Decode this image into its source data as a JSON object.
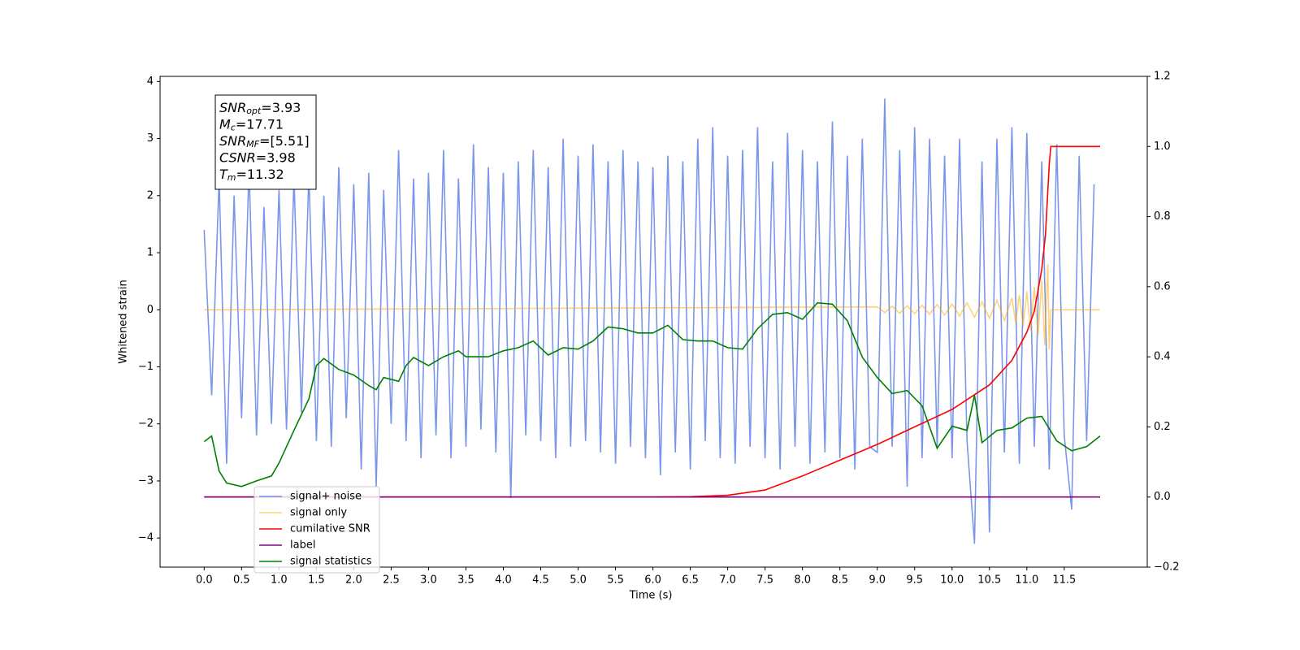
{
  "chart_data": {
    "type": "line",
    "xlabel": "Time (s)",
    "ylabel": "Whitened strain",
    "xlim": [
      -0.59,
      12.61
    ],
    "ylim": [
      -4.51,
      4.09
    ],
    "y2lim": [
      -0.2,
      1.2
    ],
    "xticks": [
      {
        "value": 0,
        "label": "0.0"
      },
      {
        "value": 0.5,
        "label": "0.5"
      },
      {
        "value": 1,
        "label": "1.0"
      },
      {
        "value": 1.5,
        "label": "1.5"
      },
      {
        "value": 2,
        "label": "2.0"
      },
      {
        "value": 2.5,
        "label": "2.5"
      },
      {
        "value": 3,
        "label": "3.0"
      },
      {
        "value": 3.5,
        "label": "3.5"
      },
      {
        "value": 4,
        "label": "4.0"
      },
      {
        "value": 4.5,
        "label": "4.5"
      },
      {
        "value": 5,
        "label": "5.0"
      },
      {
        "value": 5.5,
        "label": "5.5"
      },
      {
        "value": 6,
        "label": "6.0"
      },
      {
        "value": 6.5,
        "label": "6.5"
      },
      {
        "value": 7,
        "label": "7.0"
      },
      {
        "value": 7.5,
        "label": "7.5"
      },
      {
        "value": 8,
        "label": "8.0"
      },
      {
        "value": 8.5,
        "label": "8.5"
      },
      {
        "value": 9,
        "label": "9.0"
      },
      {
        "value": 9.5,
        "label": "9.5"
      },
      {
        "value": 10,
        "label": "10.0"
      },
      {
        "value": 10.5,
        "label": "10.5"
      },
      {
        "value": 11,
        "label": "11.0"
      },
      {
        "value": 11.5,
        "label": "11.5"
      }
    ],
    "yticks": [
      {
        "value": -4,
        "label": "−4"
      },
      {
        "value": -3,
        "label": "−3"
      },
      {
        "value": -2,
        "label": "−2"
      },
      {
        "value": -1,
        "label": "−1"
      },
      0,
      1,
      2,
      3,
      4
    ],
    "y2ticks": [
      {
        "value": -0.2,
        "label": "−0.2"
      },
      {
        "value": 0,
        "label": "0.0"
      },
      {
        "value": 0.2,
        "label": "0.2"
      },
      {
        "value": 0.4,
        "label": "0.4"
      },
      {
        "value": 0.6,
        "label": "0.6"
      },
      {
        "value": 0.8,
        "label": "0.8"
      },
      {
        "value": 1,
        "label": "1.0"
      },
      {
        "value": 1.2,
        "label": "1.2"
      }
    ],
    "annotation": [
      {
        "symbol": "SNR",
        "sub": "opt",
        "text": "=3.93"
      },
      {
        "symbol": "M",
        "sub": "c",
        "text": "=17.71"
      },
      {
        "symbol": "SNR",
        "sub": "MF",
        "text": "=[5.51]"
      },
      {
        "symbol": "CSNR",
        "text": "=3.98"
      },
      {
        "symbol": "T",
        "sub": "m",
        "text": "=11.32"
      }
    ],
    "series": [
      {
        "name": "signal+ noise",
        "color": "#4169e1",
        "alpha": 0.7,
        "x": [
          0,
          0.1,
          0.2,
          0.3,
          0.4,
          0.5,
          0.6,
          0.7,
          0.8,
          0.9,
          1,
          1.1,
          1.2,
          1.3,
          1.4,
          1.5,
          1.6,
          1.7,
          1.8,
          1.9,
          2,
          2.1,
          2.2,
          2.3,
          2.4,
          2.5,
          2.6,
          2.7,
          2.8,
          2.9,
          3,
          3.1,
          3.2,
          3.3,
          3.4,
          3.5,
          3.6,
          3.7,
          3.8,
          3.9,
          4,
          4.1,
          4.2,
          4.3,
          4.4,
          4.5,
          4.6,
          4.7,
          4.8,
          4.9,
          5,
          5.1,
          5.2,
          5.3,
          5.4,
          5.5,
          5.6,
          5.7,
          5.8,
          5.9,
          6,
          6.1,
          6.2,
          6.3,
          6.4,
          6.5,
          6.6,
          6.7,
          6.8,
          6.9,
          7,
          7.1,
          7.2,
          7.3,
          7.4,
          7.5,
          7.6,
          7.7,
          7.8,
          7.9,
          8,
          8.1,
          8.2,
          8.3,
          8.4,
          8.5,
          8.6,
          8.7,
          8.8,
          8.9,
          9,
          9.1,
          9.2,
          9.3,
          9.4,
          9.5,
          9.6,
          9.7,
          9.8,
          9.9,
          10,
          10.1,
          10.2,
          10.3,
          10.4,
          10.5,
          10.6,
          10.7,
          10.8,
          10.9,
          11,
          11.1,
          11.2,
          11.3,
          11.4,
          11.5,
          11.6,
          11.7,
          11.8,
          11.9
        ],
        "values": [
          1.4,
          -1.5,
          2.3,
          -2.7,
          2.0,
          -1.9,
          2.5,
          -2.2,
          1.8,
          -2.0,
          2.1,
          -2.1,
          2.3,
          -1.8,
          2.4,
          -2.3,
          2.0,
          -2.4,
          2.5,
          -1.9,
          2.2,
          -2.8,
          2.4,
          -3.1,
          2.1,
          -2.0,
          2.8,
          -2.3,
          2.3,
          -2.6,
          2.4,
          -2.2,
          2.8,
          -2.6,
          2.3,
          -2.4,
          2.9,
          -2.1,
          2.5,
          -2.5,
          2.4,
          -3.3,
          2.6,
          -2.2,
          2.8,
          -2.3,
          2.5,
          -2.6,
          3.0,
          -2.4,
          2.7,
          -2.3,
          2.9,
          -2.5,
          2.6,
          -2.7,
          2.8,
          -2.4,
          2.6,
          -2.6,
          2.5,
          -2.9,
          2.7,
          -2.5,
          2.6,
          -2.8,
          3.0,
          -2.3,
          3.2,
          -2.6,
          2.7,
          -2.7,
          2.8,
          -2.4,
          3.2,
          -2.6,
          2.6,
          -2.8,
          3.1,
          -2.4,
          2.8,
          -2.7,
          2.6,
          -2.5,
          3.3,
          -2.6,
          2.7,
          -2.8,
          3.0,
          -2.4,
          -2.5,
          3.7,
          -2.4,
          2.8,
          -3.1,
          3.2,
          -2.6,
          3.0,
          -2.4,
          2.7,
          -2.6,
          3.0,
          -2.3,
          -4.1,
          2.6,
          -3.9,
          3.0,
          -2.5,
          3.2,
          -2.7,
          3.1,
          -2.4,
          2.6,
          -2.8,
          2.9,
          -2.2,
          -3.5,
          2.7,
          -2.3,
          2.2
        ]
      },
      {
        "name": "signal only",
        "color": "#ffa500",
        "alpha": 0.5,
        "x": [
          0,
          9.0,
          9.1,
          9.2,
          9.3,
          9.4,
          9.5,
          9.6,
          9.7,
          9.8,
          9.9,
          10.0,
          10.1,
          10.2,
          10.3,
          10.4,
          10.5,
          10.6,
          10.7,
          10.8,
          10.85,
          10.9,
          10.95,
          11.0,
          11.05,
          11.1,
          11.15,
          11.2,
          11.24,
          11.28,
          11.3,
          11.32,
          11.98
        ],
        "values": [
          0,
          0.05,
          -0.05,
          0.06,
          -0.06,
          0.07,
          -0.07,
          0.08,
          -0.08,
          0.09,
          -0.09,
          0.1,
          -0.11,
          0.12,
          -0.13,
          0.14,
          -0.15,
          0.17,
          -0.19,
          0.21,
          -0.23,
          0.26,
          -0.29,
          0.32,
          -0.36,
          0.4,
          -0.45,
          0.52,
          -0.62,
          0.8,
          -0.7,
          0,
          0
        ]
      },
      {
        "name": "cumilative SNR",
        "color": "#ff0000",
        "axis": "y2",
        "x": [
          0,
          6.0,
          6.5,
          7.0,
          7.5,
          8.0,
          8.5,
          9.0,
          9.5,
          10.0,
          10.5,
          10.8,
          11.0,
          11.1,
          11.2,
          11.25,
          11.3,
          11.32,
          11.98
        ],
        "values": [
          0,
          0,
          0.001,
          0.005,
          0.02,
          0.06,
          0.105,
          0.15,
          0.2,
          0.25,
          0.32,
          0.39,
          0.47,
          0.53,
          0.65,
          0.75,
          0.95,
          1.0,
          1.0
        ]
      },
      {
        "name": "label",
        "color": "#800080",
        "axis": "y2",
        "x": [
          0,
          11.98
        ],
        "values": [
          0,
          0
        ]
      },
      {
        "name": "signal statistics",
        "color": "#008000",
        "axis": "y2",
        "x": [
          0,
          0.1,
          0.2,
          0.3,
          0.5,
          0.7,
          0.9,
          1.0,
          1.2,
          1.4,
          1.5,
          1.6,
          1.8,
          2.0,
          2.2,
          2.3,
          2.4,
          2.6,
          2.7,
          2.8,
          3.0,
          3.2,
          3.4,
          3.5,
          3.8,
          4.0,
          4.2,
          4.4,
          4.6,
          4.8,
          5.0,
          5.2,
          5.4,
          5.6,
          5.8,
          6.0,
          6.2,
          6.4,
          6.6,
          6.8,
          7.0,
          7.2,
          7.4,
          7.6,
          7.8,
          8.0,
          8.2,
          8.4,
          8.6,
          8.8,
          9.0,
          9.2,
          9.4,
          9.6,
          9.8,
          10.0,
          10.2,
          10.3,
          10.4,
          10.6,
          10.8,
          11.0,
          11.2,
          11.4,
          11.6,
          11.8,
          11.98
        ],
        "values": [
          0.158,
          0.174,
          0.074,
          0.04,
          0.03,
          0.046,
          0.06,
          0.097,
          0.19,
          0.28,
          0.375,
          0.395,
          0.364,
          0.348,
          0.318,
          0.306,
          0.341,
          0.33,
          0.375,
          0.398,
          0.375,
          0.4,
          0.417,
          0.4,
          0.4,
          0.417,
          0.426,
          0.445,
          0.405,
          0.426,
          0.422,
          0.445,
          0.485,
          0.48,
          0.468,
          0.468,
          0.49,
          0.449,
          0.445,
          0.445,
          0.426,
          0.422,
          0.48,
          0.521,
          0.526,
          0.507,
          0.554,
          0.55,
          0.503,
          0.399,
          0.341,
          0.295,
          0.304,
          0.26,
          0.139,
          0.202,
          0.19,
          0.29,
          0.155,
          0.19,
          0.197,
          0.225,
          0.23,
          0.16,
          0.132,
          0.144,
          0.174
        ]
      }
    ]
  }
}
